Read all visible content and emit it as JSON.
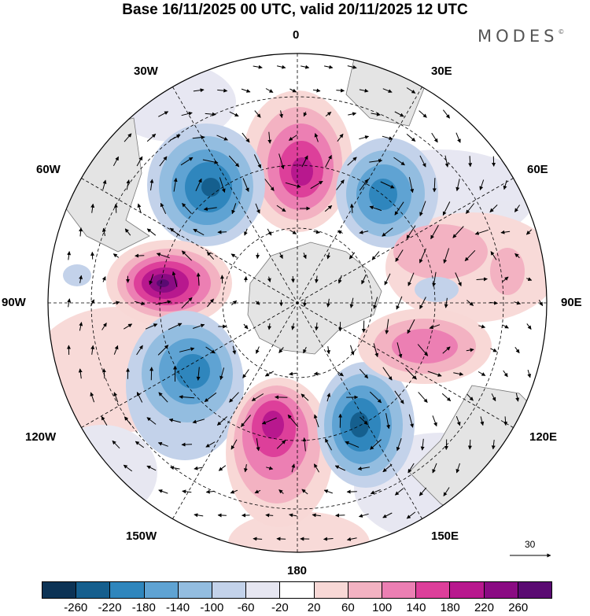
{
  "header": {
    "title": "Base 16/11/2025 00 UTC, valid 20/11/2025 12 UTC",
    "brand": "MODES",
    "brand_mark": "©"
  },
  "map": {
    "projection": "south polar stereographic",
    "center": "South Pole",
    "longitude_labels": {
      "lon_0": "0",
      "lon_30e": "30E",
      "lon_60e": "60E",
      "lon_90e": "90E",
      "lon_120e": "120E",
      "lon_150e": "150E",
      "lon_180": "180",
      "lon_150w": "150W",
      "lon_120w": "120W",
      "lon_90w": "90W",
      "lon_60w": "60W",
      "lon_30w": "30W"
    },
    "anomaly_centers": [
      {
        "sign": "positive",
        "peak": 220,
        "sector": "0 (north of center)"
      },
      {
        "sign": "negative",
        "peak": -200,
        "sector": "30W-60W"
      },
      {
        "sign": "negative",
        "peak": -180,
        "sector": "30E-60E"
      },
      {
        "sign": "positive",
        "peak": 100,
        "sector": "60E-90E"
      },
      {
        "sign": "positive",
        "peak": 260,
        "sector": "90W"
      },
      {
        "sign": "negative",
        "peak": -180,
        "sector": "120W-150W"
      },
      {
        "sign": "positive",
        "peak": 220,
        "sector": "180-150W"
      },
      {
        "sign": "negative",
        "peak": -220,
        "sector": "150E-120E"
      },
      {
        "sign": "positive",
        "peak": 140,
        "sector": "90E-120E"
      }
    ]
  },
  "vector_reference": {
    "value": "30"
  },
  "colorbar": {
    "tick_labels": [
      "-260",
      "-220",
      "-180",
      "-140",
      "-100",
      "-60",
      "-20",
      "20",
      "60",
      "100",
      "140",
      "180",
      "220",
      "260"
    ],
    "colors": [
      "#0c3355",
      "#155f8e",
      "#2f86bd",
      "#5fa3d3",
      "#93bde0",
      "#c3d2ea",
      "#e6e6f1",
      "#ffffff",
      "#f8d8d6",
      "#f3b2c2",
      "#ec7fb3",
      "#dd3f9a",
      "#b8188e",
      "#8a0b83",
      "#5a0a72"
    ]
  }
}
